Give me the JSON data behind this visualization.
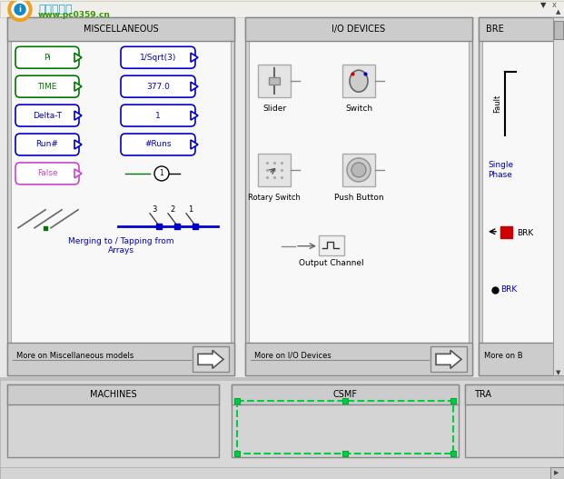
{
  "bg_color": "#e8e8e8",
  "top_bar_color": "#f0f0f0",
  "panel_bg": "#d0d0d0",
  "panel_inner_bg": "#ffffff",
  "panel_border": "#999999",
  "title": "MISCELLANEOUS",
  "title2": "I/O DEVICES",
  "title3": "BRE",
  "watermark_line1": "河东软件园",
  "watermark_line2": "www.pc0359.cn",
  "watermark_color1": "#22aadd",
  "watermark_color2": "#339900",
  "misc_green": [
    "Pi",
    "TIME",
    "Delta-T",
    "Run#"
  ],
  "misc_right": [
    "1/Sqrt(3)",
    "377.0",
    "1",
    "#Runs"
  ],
  "bottom_text_misc": "More on Miscellaneous models",
  "bottom_text_io": "More on I/O Devices",
  "bottom_text_bre": "More on B",
  "bottom_section_left": "MACHINES",
  "bottom_section_mid": "CSMF",
  "bottom_section_right": "TRA",
  "merge_text": "Merging to / Tapping from\nArrays",
  "single_phase_text": "Single\nPhase",
  "brk_text": "BRK",
  "fault_text": "Fault",
  "green_color": "#007700",
  "blue_color": "#0000cc",
  "pink_color": "#cc44cc",
  "red_color": "#cc0000",
  "panel_gray": "#d4d4d4",
  "inner_white": "#f8f8f8",
  "border_dark": "#888888"
}
